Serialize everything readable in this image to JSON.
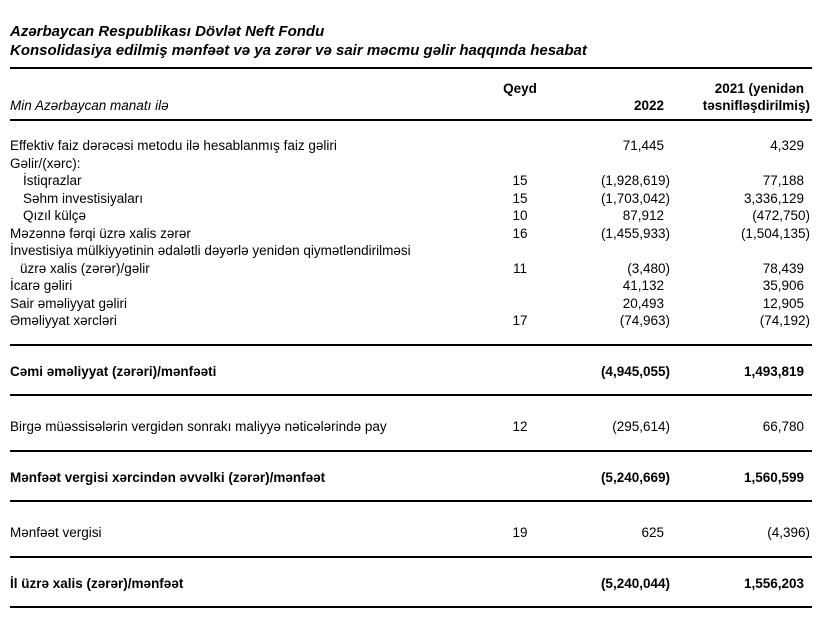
{
  "document": {
    "title_line1": "Azərbaycan Respublikası Dövlət Neft Fondu",
    "title_line2": "Konsolidasiya edilmiş mənfəət və ya zərər və sair məcmu gəlir haqqında hesabat"
  },
  "table": {
    "unit_label": "Min Azərbaycan manatı ilə",
    "columns": {
      "note": "Qeyd",
      "y2022": "2022",
      "y2021_line1": "2021 (yenidən",
      "y2021_line2": "təsnifləşdirilmiş)"
    },
    "rows": [
      {
        "type": "item",
        "label": "Effektiv faiz dərəcəsi metodu ilə hesablanmış faiz gəliri",
        "note": "",
        "v2022": "71,445",
        "v2021": "4,329"
      },
      {
        "type": "item",
        "label": "Gəlir/(xərc):",
        "note": "",
        "v2022": "",
        "v2021": ""
      },
      {
        "type": "item",
        "indent": true,
        "label": "İstiqrazlar",
        "note": "15",
        "v2022": "(1,928,619)",
        "v2021": "77,188"
      },
      {
        "type": "item",
        "indent": true,
        "label": "Səhm investisiyaları",
        "note": "15",
        "v2022": "(1,703,042)",
        "v2021": "3,336,129"
      },
      {
        "type": "item",
        "indent": true,
        "label": "Qızıl külçə",
        "note": "10",
        "v2022": "87,912",
        "v2021": "(472,750)"
      },
      {
        "type": "item",
        "label": "Məzənnə fərqi üzrə xalis zərər",
        "note": "16",
        "v2022": "(1,455,933)",
        "v2021": "(1,504,135)"
      },
      {
        "type": "item",
        "label": "İnvestisiya mülkiyyətinin ədalətli dəyərlə yenidən qiymətləndirilməsi",
        "label2": "üzrə xalis (zərər)/gəlir",
        "note": "11",
        "v2022": "(3,480)",
        "v2021": "78,439"
      },
      {
        "type": "item",
        "label": "İcarə gəliri",
        "note": "",
        "v2022": "41,132",
        "v2021": "35,906"
      },
      {
        "type": "item",
        "label": "Sair əməliyyat gəliri",
        "note": "",
        "v2022": "20,493",
        "v2021": "12,905"
      },
      {
        "type": "item",
        "label": "Əməliyyat xərcləri",
        "note": "17",
        "v2022": "(74,963)",
        "v2021": "(74,192)"
      },
      {
        "type": "rule"
      },
      {
        "type": "item",
        "bold": true,
        "label": "Cəmi əməliyyat (zərəri)/mənfəəti",
        "note": "",
        "v2022": "(4,945,055)",
        "v2021": "1,493,819"
      },
      {
        "type": "rule"
      },
      {
        "type": "item",
        "label": "Birgə müəssisələrin vergidən sonrakı maliyyə nəticələrində pay",
        "note": "12",
        "v2022": "(295,614)",
        "v2021": "66,780"
      },
      {
        "type": "rule"
      },
      {
        "type": "item",
        "bold": true,
        "label": "Mənfəət vergisi xərcindən əvvəlki (zərər)/mənfəət",
        "note": "",
        "v2022": "(5,240,669)",
        "v2021": "1,560,599"
      },
      {
        "type": "rule"
      },
      {
        "type": "item",
        "label": "Mənfəət vergisi",
        "note": "19",
        "v2022": "625",
        "v2021": "(4,396)"
      },
      {
        "type": "rule"
      },
      {
        "type": "item",
        "bold": true,
        "label": "İl üzrə xalis (zərər)/mənfəət",
        "note": "",
        "v2022": "(5,240,044)",
        "v2021": "1,556,203"
      },
      {
        "type": "rule"
      }
    ]
  },
  "colors": {
    "text": "#000000",
    "background": "#ffffff",
    "rule": "#000000"
  }
}
